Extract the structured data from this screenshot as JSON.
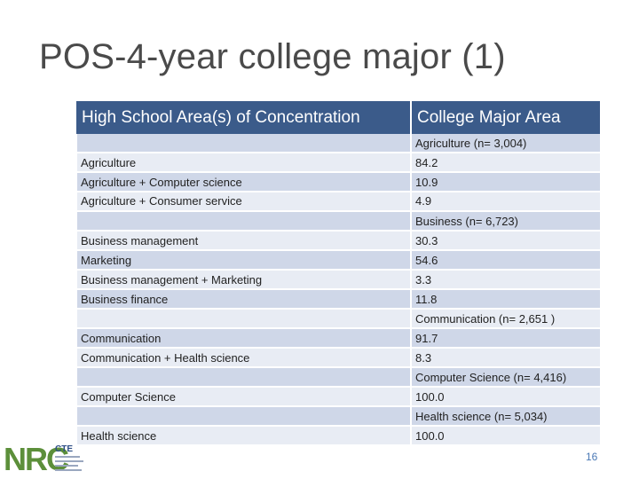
{
  "slide": {
    "title": "POS-4-year college major (1)",
    "page_number": "16"
  },
  "table": {
    "headers": [
      "High School Area(s) of Concentration",
      "College Major Area"
    ],
    "rows": [
      [
        "",
        "Agriculture (n= 3,004)"
      ],
      [
        "Agriculture",
        "84.2"
      ],
      [
        "Agriculture + Computer science",
        "10.9"
      ],
      [
        "Agriculture + Consumer service",
        "4.9"
      ],
      [
        "",
        "Business (n= 6,723)"
      ],
      [
        "Business management",
        "30.3"
      ],
      [
        "Marketing",
        "54.6"
      ],
      [
        "Business management + Marketing",
        "3.3"
      ],
      [
        "Business finance",
        "11.8"
      ],
      [
        "",
        "Communication (n= 2,651 )"
      ],
      [
        "Communication",
        "91.7"
      ],
      [
        "Communication + Health science",
        "8.3"
      ],
      [
        "",
        "Computer Science (n= 4,416)"
      ],
      [
        "Computer Science",
        "100.0"
      ],
      [
        "",
        "Health science (n= 5,034)"
      ],
      [
        "Health science",
        "100.0"
      ]
    ]
  },
  "logo": {
    "text": "NRC",
    "sub": "CTE",
    "colors": {
      "green": "#5c8f3a",
      "blue": "#2e4f86"
    }
  }
}
